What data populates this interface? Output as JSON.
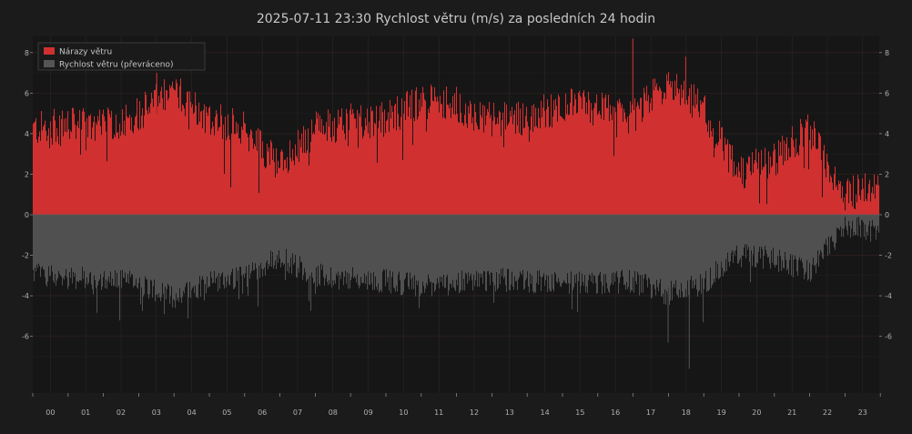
{
  "chart_data": {
    "type": "bar",
    "title": "2025-07-11  23:30  Rychlost větru (m/s) za posledních 24 hodin",
    "legend_position": "top-left",
    "grid": true,
    "ylim": [
      -8.8,
      8.8
    ],
    "y_ticks": [
      "8",
      "6",
      "4",
      "2",
      "0",
      "-2",
      "-4",
      "-6"
    ],
    "x_ticks": [
      "00",
      "01",
      "02",
      "03",
      "04",
      "05",
      "06",
      "07",
      "08",
      "09",
      "10",
      "11",
      "12",
      "13",
      "14",
      "15",
      "16",
      "17",
      "18",
      "19",
      "20",
      "21",
      "22",
      "23"
    ],
    "series": [
      {
        "name": "Nárazy větru",
        "color": "#d03030",
        "hourly_envelope": [
          4.4,
          4.6,
          4.5,
          5.2,
          6.3,
          5.0,
          4.4,
          2.6,
          4.4,
          4.8,
          4.9,
          5.8,
          5.6,
          4.8,
          5.0,
          5.6,
          5.4,
          5.0,
          6.8,
          5.4,
          2.2,
          2.9,
          4.4,
          1.2,
          1.6
        ],
        "peak_values": [
          7.0,
          8.7,
          7.8
        ]
      },
      {
        "name": "Rychlost větru (převráceno)",
        "color": "#505050",
        "hourly_envelope": [
          -3.0,
          -3.2,
          -3.3,
          -3.5,
          -4.2,
          -3.4,
          -3.2,
          -2.2,
          -3.1,
          -3.3,
          -3.4,
          -3.6,
          -3.5,
          -3.3,
          -3.4,
          -3.5,
          -3.5,
          -3.4,
          -4.0,
          -3.5,
          -2.1,
          -2.3,
          -3.0,
          -0.7,
          -0.9
        ],
        "min_values": [
          -6.3,
          -7.6
        ]
      }
    ]
  }
}
